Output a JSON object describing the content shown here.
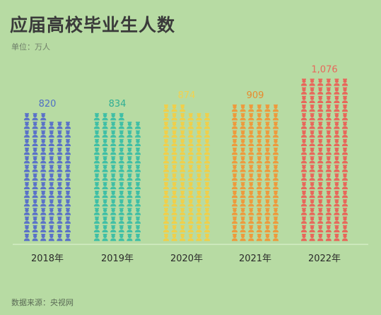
{
  "title": "应届高校毕业生人数",
  "unit_label": "单位：万人",
  "source": "数据来源：央视网",
  "chart_data": {
    "type": "bar",
    "title": "应届高校毕业生人数",
    "ylabel": "单位：万人",
    "categories": [
      "2018年",
      "2019年",
      "2020年",
      "2021年",
      "2022年"
    ],
    "values": [
      820,
      834,
      874,
      909,
      1076
    ],
    "value_labels": [
      "820",
      "834",
      "874",
      "909",
      "1,076"
    ],
    "colors": [
      "#5a72c8",
      "#3fbfa6",
      "#f0cf4a",
      "#ee9a3c",
      "#e8675a"
    ],
    "label_colors": [
      "#4f6fc4",
      "#2faf94",
      "#f2d24e",
      "#e88a2c",
      "#e8675a"
    ],
    "ylim": [
      0,
      1076
    ],
    "grid": false,
    "legend": "none"
  }
}
